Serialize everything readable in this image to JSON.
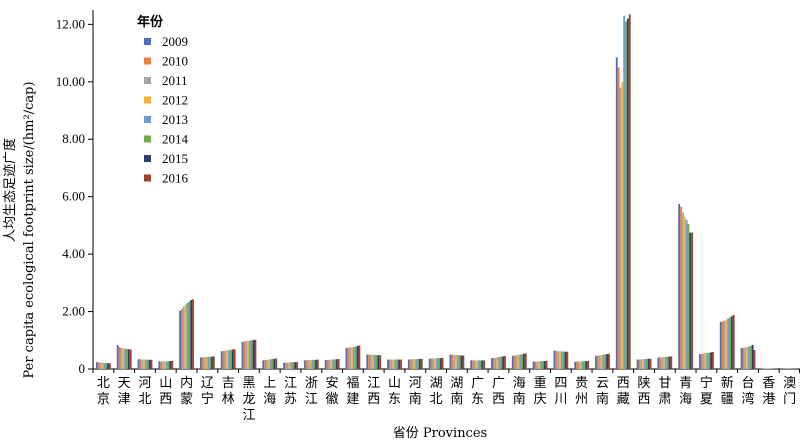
{
  "chart_data": {
    "type": "bar",
    "xlabel": "省份 Provinces",
    "ylabel_line1": "人均生态足迹广度",
    "ylabel_line2": "Per capita ecological footprint size/(hm²/cap)",
    "ylim": [
      0,
      12.5
    ],
    "yticks": [
      "0",
      "2.00",
      "4.00",
      "6.00",
      "8.00",
      "10.00",
      "12.00"
    ],
    "legend_title": "年份",
    "legend_position": "top-left",
    "grid": false,
    "categories": [
      "北京",
      "天津",
      "河北",
      "山西",
      "内蒙",
      "辽宁",
      "吉林",
      "黑龙江",
      "上海",
      "江苏",
      "浙江",
      "安徽",
      "福建",
      "江西",
      "山东",
      "河南",
      "湖北",
      "湖南",
      "广东",
      "广西",
      "海南",
      "重庆",
      "四川",
      "贵州",
      "云南",
      "西藏",
      "陕西",
      "甘肃",
      "青海",
      "宁夏",
      "新疆",
      "台湾",
      "香港",
      "澳门"
    ],
    "series": [
      {
        "name": "2009",
        "color": "#4e6fb8",
        "values": [
          0.24,
          0.83,
          0.34,
          0.27,
          2.03,
          0.4,
          0.62,
          0.94,
          0.3,
          0.22,
          0.3,
          0.31,
          0.73,
          0.5,
          0.33,
          0.33,
          0.36,
          0.5,
          0.3,
          0.38,
          0.46,
          0.26,
          0.64,
          0.25,
          0.46,
          10.85,
          0.33,
          0.4,
          5.75,
          0.52,
          1.64,
          0.73,
          0.02,
          0.01
        ]
      },
      {
        "name": "2010",
        "color": "#ea7f43",
        "values": [
          0.23,
          0.76,
          0.34,
          0.26,
          2.1,
          0.41,
          0.63,
          0.96,
          0.31,
          0.22,
          0.31,
          0.32,
          0.74,
          0.5,
          0.33,
          0.33,
          0.36,
          0.5,
          0.3,
          0.39,
          0.47,
          0.26,
          0.63,
          0.26,
          0.47,
          10.5,
          0.33,
          0.41,
          5.65,
          0.53,
          1.66,
          0.74,
          0.02,
          0.01
        ]
      },
      {
        "name": "2011",
        "color": "#a6a6a6",
        "values": [
          0.22,
          0.73,
          0.33,
          0.26,
          2.18,
          0.41,
          0.64,
          0.97,
          0.32,
          0.23,
          0.31,
          0.32,
          0.75,
          0.5,
          0.33,
          0.34,
          0.37,
          0.49,
          0.3,
          0.4,
          0.48,
          0.26,
          0.62,
          0.26,
          0.48,
          9.8,
          0.34,
          0.41,
          5.45,
          0.54,
          1.68,
          0.75,
          0.02,
          0.01
        ]
      },
      {
        "name": "2012",
        "color": "#f4b33e",
        "values": [
          0.22,
          0.72,
          0.33,
          0.26,
          2.25,
          0.42,
          0.65,
          0.98,
          0.33,
          0.23,
          0.31,
          0.33,
          0.76,
          0.5,
          0.33,
          0.34,
          0.37,
          0.49,
          0.3,
          0.41,
          0.49,
          0.27,
          0.62,
          0.26,
          0.49,
          10.0,
          0.34,
          0.42,
          5.3,
          0.55,
          1.72,
          0.76,
          0.02,
          0.01
        ]
      },
      {
        "name": "2013",
        "color": "#6b9dd4",
        "values": [
          0.21,
          0.71,
          0.33,
          0.27,
          2.3,
          0.42,
          0.66,
          0.99,
          0.34,
          0.23,
          0.32,
          0.33,
          0.77,
          0.49,
          0.33,
          0.34,
          0.38,
          0.48,
          0.3,
          0.42,
          0.5,
          0.27,
          0.61,
          0.27,
          0.5,
          12.3,
          0.35,
          0.42,
          5.2,
          0.56,
          1.76,
          0.78,
          0.02,
          0.01
        ]
      },
      {
        "name": "2014",
        "color": "#70ad47",
        "values": [
          0.21,
          0.7,
          0.32,
          0.27,
          2.35,
          0.43,
          0.67,
          1.0,
          0.35,
          0.24,
          0.32,
          0.34,
          0.78,
          0.49,
          0.33,
          0.35,
          0.38,
          0.48,
          0.3,
          0.43,
          0.52,
          0.28,
          0.61,
          0.27,
          0.51,
          12.1,
          0.35,
          0.43,
          5.05,
          0.57,
          1.8,
          0.8,
          0.02,
          0.01
        ]
      },
      {
        "name": "2015",
        "color": "#2e3f6e",
        "values": [
          0.2,
          0.69,
          0.32,
          0.28,
          2.4,
          0.43,
          0.68,
          1.01,
          0.36,
          0.24,
          0.32,
          0.34,
          0.8,
          0.48,
          0.33,
          0.35,
          0.38,
          0.47,
          0.3,
          0.44,
          0.53,
          0.28,
          0.6,
          0.28,
          0.52,
          12.2,
          0.36,
          0.43,
          4.75,
          0.58,
          1.84,
          0.84,
          0.02,
          0.01
        ]
      },
      {
        "name": "2016",
        "color": "#a0412a",
        "values": [
          0.2,
          0.68,
          0.32,
          0.28,
          2.43,
          0.44,
          0.69,
          1.02,
          0.37,
          0.24,
          0.33,
          0.35,
          0.82,
          0.48,
          0.33,
          0.35,
          0.39,
          0.47,
          0.3,
          0.45,
          0.55,
          0.29,
          0.6,
          0.28,
          0.53,
          12.35,
          0.36,
          0.44,
          4.75,
          0.59,
          1.88,
          0.66,
          0.02,
          0.01
        ]
      }
    ]
  }
}
